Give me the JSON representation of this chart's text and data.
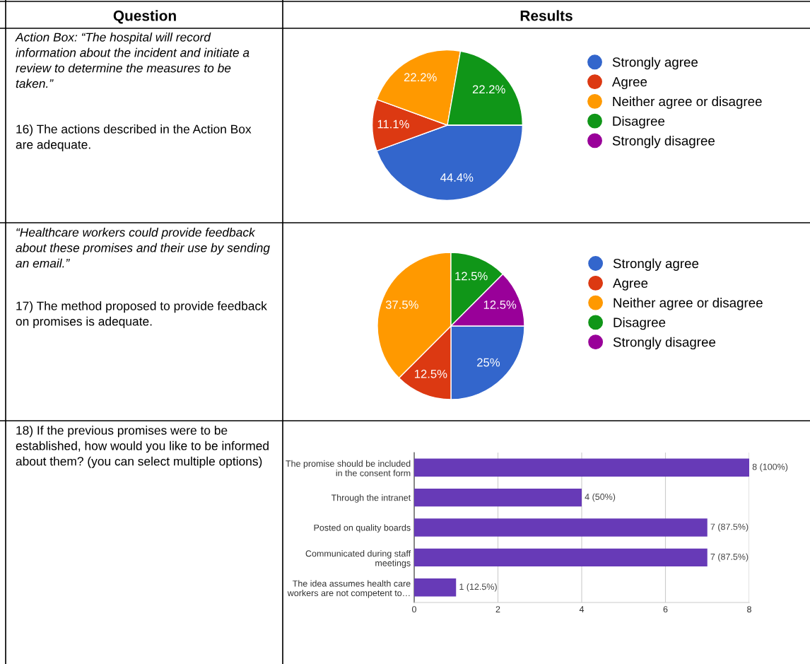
{
  "chart_data": [
    {
      "type": "pie",
      "categories": [
        "Strongly agree",
        "Agree",
        "Neither agree or disagree",
        "Disagree",
        "Strongly disagree"
      ],
      "values": [
        44.4,
        11.1,
        22.2,
        22.2,
        0
      ],
      "colors": [
        "#3366cc",
        "#dc3912",
        "#ff9900",
        "#109618",
        "#990099"
      ],
      "value_labels": [
        "44.4%",
        "11.1%",
        "22.2%",
        "22.2%",
        null
      ],
      "legend": "right",
      "annotations": [
        "Question",
        "Results",
        "Action Box: “The hospital will record information about the incident and initiate a review to determine the measures to be taken.”",
        "16) The actions described in the Action Box are adequate."
      ]
    },
    {
      "type": "pie",
      "categories": [
        "Strongly agree",
        "Agree",
        "Neither agree or disagree",
        "Disagree",
        "Strongly disagree"
      ],
      "values": [
        25,
        12.5,
        37.5,
        12.5,
        12.5
      ],
      "colors": [
        "#3366cc",
        "#dc3912",
        "#ff9900",
        "#109618",
        "#990099"
      ],
      "value_labels": [
        "25%",
        "12.5%",
        "37.5%",
        "12.5%",
        "12.5%"
      ],
      "legend": "right",
      "annotations": [
        "“Healthcare workers could provide feedback about these promises and their use by sending an email.”",
        "17) The method proposed to provide feedback on promises is adequate."
      ]
    },
    {
      "type": "bar",
      "orientation": "horizontal",
      "categories": [
        "The promise should be included\nin the consent form",
        "Through the intranet",
        "Posted on quality boards",
        "Communicated during staff\nmeetings",
        "The idea assumes health care\nworkers are not competent to…"
      ],
      "values": [
        8,
        4,
        7,
        7,
        1
      ],
      "color": "#673ab7",
      "xlim": [
        0,
        8
      ],
      "xticks": [
        0,
        2,
        4,
        6,
        8
      ],
      "grid": "x",
      "value_labels": [
        "8 (100%)",
        "4 (50%)",
        "7 (87.5%)",
        "7 (87.5%)",
        "1 (12.5%)"
      ],
      "annotations": [
        "18) If the previous promises were to be established, how would you like to be informed about them? (you can select multiple options)"
      ]
    }
  ]
}
